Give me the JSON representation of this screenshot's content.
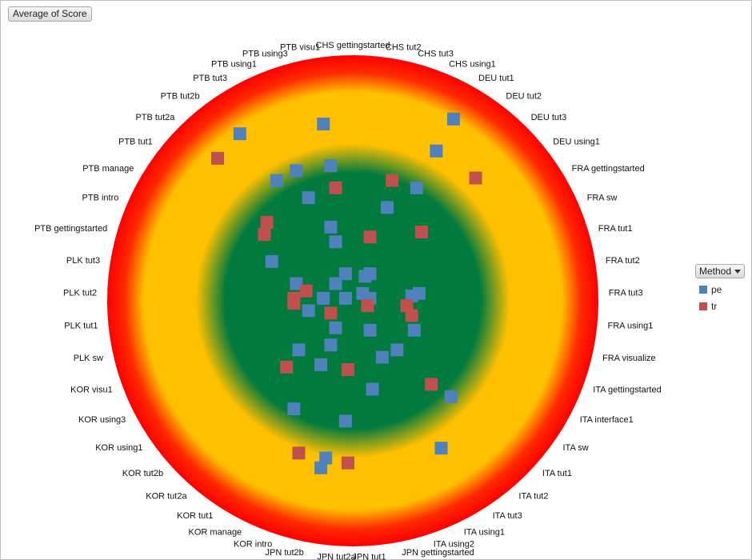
{
  "field_button": "Average of Score",
  "legend": {
    "title": "Method",
    "items": [
      {
        "label": "pe",
        "color": "#4f81bd"
      },
      {
        "label": "tr",
        "color": "#c0504d"
      }
    ]
  },
  "chart_data": {
    "type": "scatter",
    "title": "",
    "xlabel": "",
    "ylabel": "",
    "grid": false,
    "legend_placement": "right",
    "background_bands": [
      "#007a3d",
      "#ffc000",
      "#ff0000"
    ],
    "categories": [
      "CHS gettingstarted",
      "CHS tut2",
      "CHS tut3",
      "CHS using1",
      "DEU tut1",
      "DEU tut2",
      "DEU tut3",
      "DEU using1",
      "FRA gettingstarted",
      "FRA sw",
      "FRA tut1",
      "FRA tut2",
      "FRA tut3",
      "FRA using1",
      "FRA visualize",
      "ITA gettingstarted",
      "ITA interface1",
      "ITA sw",
      "ITA tut1",
      "ITA tut2",
      "ITA tut3",
      "ITA using1",
      "ITA using2",
      "JPN gettingstarted",
      "JPN tut1",
      "JPN tut2a",
      "JPN tut2b",
      "KOR intro",
      "KOR manage",
      "KOR tut1",
      "KOR tut2a",
      "KOR tut2b",
      "KOR using1",
      "KOR using3",
      "KOR visu1",
      "PLK sw",
      "PLK tut1",
      "PLK tut2",
      "PLK tut3",
      "PTB gettingstarted",
      "PTB intro",
      "PTB manage",
      "PTB tut1",
      "PTB tut2a",
      "PTB tut2b",
      "PTB tut3",
      "PTB using1",
      "PTB using3",
      "PTB visu1"
    ],
    "series": [
      {
        "name": "pe",
        "color": "#4f81bd",
        "points": [
          {
            "x": 0.41,
            "y": 0.74
          },
          {
            "x": 0.34,
            "y": 0.61
          },
          {
            "x": -0.12,
            "y": 0.72
          },
          {
            "x": -0.46,
            "y": 0.68
          },
          {
            "x": -0.31,
            "y": 0.49
          },
          {
            "x": -0.09,
            "y": 0.55
          },
          {
            "x": -0.23,
            "y": 0.53
          },
          {
            "x": 0.14,
            "y": 0.38
          },
          {
            "x": -0.07,
            "y": 0.24
          },
          {
            "x": -0.03,
            "y": 0.11
          },
          {
            "x": -0.07,
            "y": 0.07
          },
          {
            "x": 0.04,
            "y": 0.03
          },
          {
            "x": 0.05,
            "y": 0.1
          },
          {
            "x": 0.07,
            "y": 0.01
          },
          {
            "x": -0.23,
            "y": 0.07
          },
          {
            "x": -0.12,
            "y": 0.01
          },
          {
            "x": -0.03,
            "y": 0.01
          },
          {
            "x": 0.24,
            "y": 0.02
          },
          {
            "x": 0.27,
            "y": 0.03
          },
          {
            "x": -0.18,
            "y": -0.04
          },
          {
            "x": -0.07,
            "y": -0.11
          },
          {
            "x": 0.07,
            "y": -0.12
          },
          {
            "x": -0.09,
            "y": -0.18
          },
          {
            "x": -0.22,
            "y": -0.2
          },
          {
            "x": -0.13,
            "y": -0.26
          },
          {
            "x": 0.12,
            "y": -0.23
          },
          {
            "x": 0.18,
            "y": -0.2
          },
          {
            "x": 0.08,
            "y": -0.36
          },
          {
            "x": 0.4,
            "y": -0.39
          },
          {
            "x": -0.03,
            "y": -0.49
          },
          {
            "x": -0.11,
            "y": -0.64
          },
          {
            "x": -0.24,
            "y": -0.44
          },
          {
            "x": -0.13,
            "y": -0.68
          },
          {
            "x": 0.26,
            "y": 0.46
          },
          {
            "x": 0.07,
            "y": 0.11
          },
          {
            "x": 0.25,
            "y": -0.12
          },
          {
            "x": 0.36,
            "y": -0.6
          },
          {
            "x": -0.18,
            "y": 0.42
          },
          {
            "x": -0.09,
            "y": 0.3
          },
          {
            "x": -0.33,
            "y": 0.16
          }
        ]
      },
      {
        "name": "tr",
        "color": "#c0504d",
        "points": [
          {
            "x": -0.55,
            "y": 0.58
          },
          {
            "x": 0.5,
            "y": 0.5
          },
          {
            "x": 0.16,
            "y": 0.49
          },
          {
            "x": -0.35,
            "y": 0.32
          },
          {
            "x": -0.36,
            "y": 0.27
          },
          {
            "x": -0.07,
            "y": 0.46
          },
          {
            "x": 0.07,
            "y": 0.26
          },
          {
            "x": 0.28,
            "y": 0.28
          },
          {
            "x": -0.19,
            "y": 0.04
          },
          {
            "x": -0.24,
            "y": 0.01
          },
          {
            "x": -0.24,
            "y": -0.01
          },
          {
            "x": -0.09,
            "y": -0.05
          },
          {
            "x": 0.06,
            "y": -0.02
          },
          {
            "x": 0.24,
            "y": -0.06
          },
          {
            "x": -0.02,
            "y": -0.28
          },
          {
            "x": 0.32,
            "y": -0.34
          },
          {
            "x": -0.22,
            "y": -0.62
          },
          {
            "x": -0.02,
            "y": -0.66
          },
          {
            "x": -0.27,
            "y": -0.27
          },
          {
            "x": 0.22,
            "y": -0.02
          }
        ]
      }
    ]
  }
}
